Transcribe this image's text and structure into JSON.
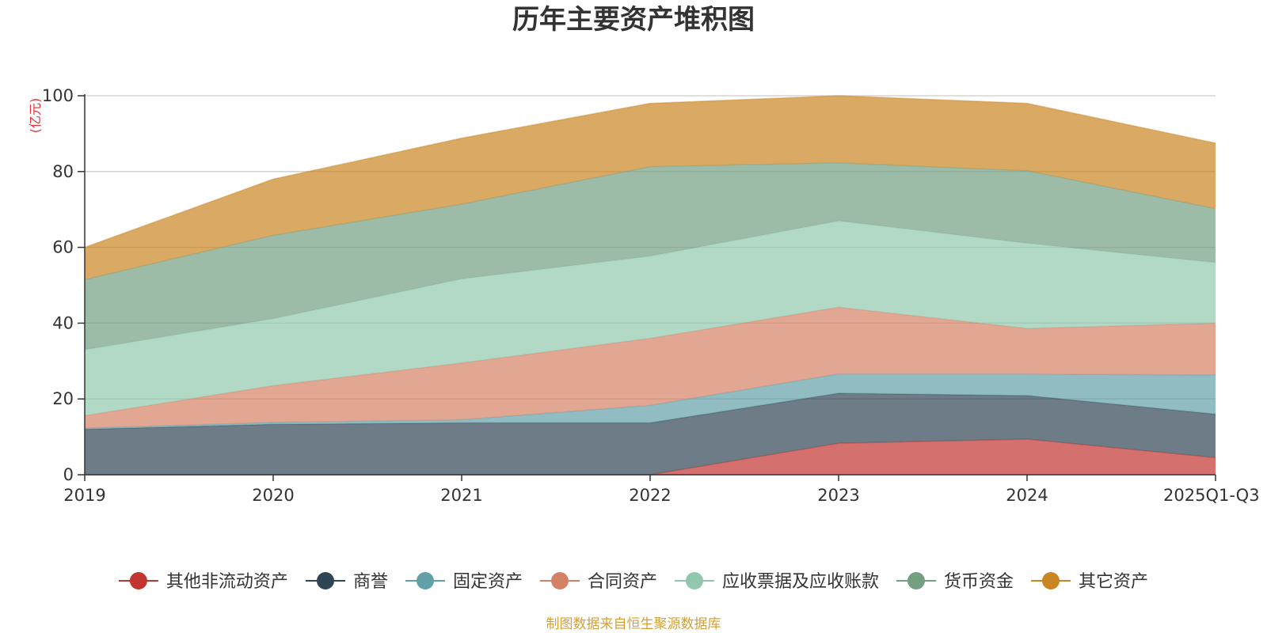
{
  "chart_data": {
    "type": "area",
    "stacked": true,
    "title": "历年主要资产堆积图",
    "y_unit": "(亿元)",
    "ylim": [
      0,
      100
    ],
    "y_ticks": [
      0,
      20,
      40,
      60,
      80,
      100
    ],
    "categories": [
      "2019",
      "2020",
      "2021",
      "2022",
      "2023",
      "2024",
      "2025Q1-Q3"
    ],
    "series": [
      {
        "name": "其他非流动资产",
        "color": "#c23531",
        "values": [
          0,
          0,
          0,
          0,
          8.3,
          9.4,
          4.5
        ]
      },
      {
        "name": "商誉",
        "color": "#2f4554",
        "values": [
          12,
          13.3,
          13.7,
          13.7,
          13.2,
          11.5,
          11.5
        ]
      },
      {
        "name": "固定资产",
        "color": "#61a0a8",
        "values": [
          0.3,
          0.5,
          0.8,
          4.6,
          5.1,
          5.7,
          10.3
        ]
      },
      {
        "name": "合同资产",
        "color": "#d48265",
        "values": [
          3.3,
          9.7,
          15,
          17.7,
          17.6,
          12,
          13.7
        ]
      },
      {
        "name": "应收票据及应收账款",
        "color": "#91c7ae",
        "values": [
          17.4,
          17.7,
          22.2,
          21.7,
          22.8,
          22.5,
          16
        ]
      },
      {
        "name": "货币资金",
        "color": "#749f83",
        "values": [
          18.5,
          22,
          19.7,
          23.6,
          15.3,
          19.1,
          14.2
        ]
      },
      {
        "name": "其它资产",
        "color": "#ca8622",
        "values": [
          8.5,
          14.8,
          17.4,
          16.7,
          17.7,
          17.8,
          17.3
        ]
      }
    ],
    "legend_position": "bottom",
    "source_note": "制图数据来自恒生聚源数据库"
  }
}
